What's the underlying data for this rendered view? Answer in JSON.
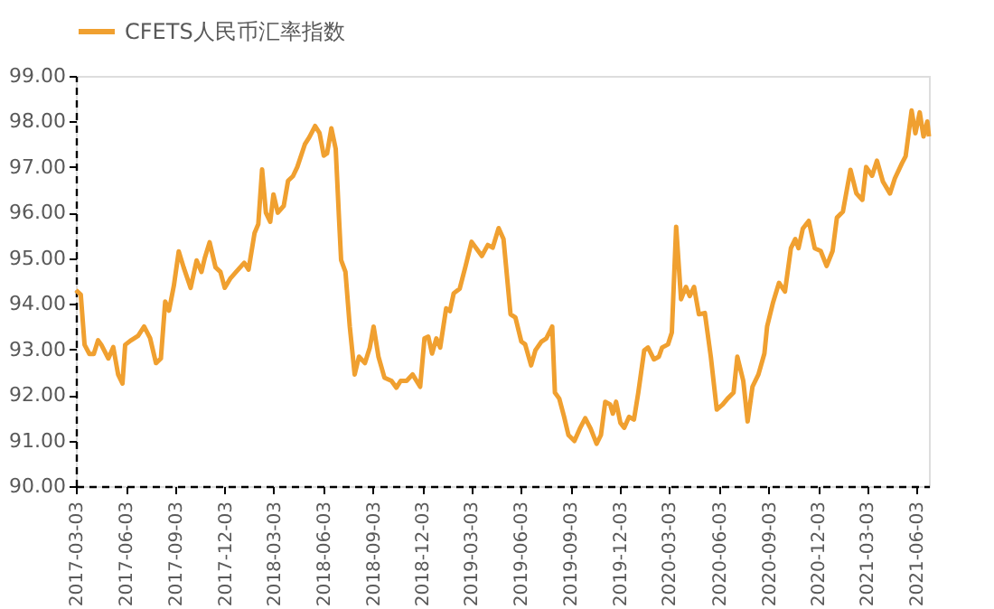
{
  "chart_data": {
    "type": "line",
    "x": [
      "2017-03-03",
      "2017-03-12",
      "2017-03-19",
      "2017-03-28",
      "2017-04-05",
      "2017-04-13",
      "2017-04-19",
      "2017-05-02",
      "2017-05-11",
      "2017-05-20",
      "2017-05-28",
      "2017-06-02",
      "2017-06-13",
      "2017-06-26",
      "2017-07-07",
      "2017-07-18",
      "2017-07-29",
      "2017-08-07",
      "2017-08-15",
      "2017-08-22",
      "2017-08-31",
      "2017-09-09",
      "2017-09-18",
      "2017-10-01",
      "2017-10-12",
      "2017-10-21",
      "2017-10-27",
      "2017-11-05",
      "2017-11-16",
      "2017-11-25",
      "2017-12-03",
      "2017-12-13",
      "2017-12-24",
      "2018-01-08",
      "2018-01-16",
      "2018-01-27",
      "2018-02-03",
      "2018-02-10",
      "2018-02-17",
      "2018-02-25",
      "2018-03-03",
      "2018-03-11",
      "2018-03-22",
      "2018-03-30",
      "2018-04-08",
      "2018-04-16",
      "2018-04-30",
      "2018-05-08",
      "2018-05-19",
      "2018-05-27",
      "2018-06-04",
      "2018-06-10",
      "2018-06-18",
      "2018-06-26",
      "2018-07-02",
      "2018-07-06",
      "2018-07-14",
      "2018-07-22",
      "2018-07-31",
      "2018-08-08",
      "2018-08-19",
      "2018-08-28",
      "2018-09-04",
      "2018-09-13",
      "2018-09-24",
      "2018-10-07",
      "2018-10-16",
      "2018-10-24",
      "2018-11-04",
      "2018-11-15",
      "2018-11-29",
      "2018-12-07",
      "2018-12-14",
      "2018-12-21",
      "2018-12-29",
      "2019-01-05",
      "2019-01-16",
      "2019-01-23",
      "2019-01-30",
      "2019-02-10",
      "2019-02-21",
      "2019-03-04",
      "2019-03-12",
      "2019-03-23",
      "2019-04-03",
      "2019-04-12",
      "2019-04-23",
      "2019-05-02",
      "2019-05-15",
      "2019-05-24",
      "2019-06-04",
      "2019-06-11",
      "2019-06-22",
      "2019-06-30",
      "2019-07-11",
      "2019-07-20",
      "2019-07-31",
      "2019-08-05",
      "2019-08-13",
      "2019-08-22",
      "2019-08-30",
      "2019-09-10",
      "2019-09-20",
      "2019-09-30",
      "2019-10-10",
      "2019-10-21",
      "2019-10-29",
      "2019-11-06",
      "2019-11-15",
      "2019-11-20",
      "2019-11-26",
      "2019-12-04",
      "2019-12-11",
      "2019-12-20",
      "2019-12-29",
      "2020-01-06",
      "2020-01-17",
      "2020-01-24",
      "2020-02-04",
      "2020-02-13",
      "2020-02-19",
      "2020-03-01",
      "2020-03-08",
      "2020-03-16",
      "2020-03-25",
      "2020-04-03",
      "2020-04-10",
      "2020-04-18",
      "2020-04-27",
      "2020-05-08",
      "2020-05-19",
      "2020-05-30",
      "2020-06-10",
      "2020-06-19",
      "2020-06-30",
      "2020-07-07",
      "2020-07-18",
      "2020-07-26",
      "2020-08-04",
      "2020-08-15",
      "2020-08-26",
      "2020-08-31",
      "2020-09-11",
      "2020-09-22",
      "2020-10-03",
      "2020-10-14",
      "2020-10-22",
      "2020-10-28",
      "2020-11-05",
      "2020-11-16",
      "2020-11-27",
      "2020-12-08",
      "2020-12-19",
      "2020-12-30",
      "2021-01-07",
      "2021-01-18",
      "2021-02-01",
      "2021-02-12",
      "2021-02-23",
      "2021-03-02",
      "2021-03-13",
      "2021-03-22",
      "2021-04-02",
      "2021-04-15",
      "2021-04-24",
      "2021-05-07",
      "2021-05-14",
      "2021-05-25",
      "2021-06-01",
      "2021-06-09",
      "2021-06-16",
      "2021-06-23",
      "2021-06-26"
    ],
    "series": [
      {
        "name": "CFETS人民币汇率指数",
        "color": "#f0a030",
        "values": [
          94.3,
          94.2,
          93.1,
          92.9,
          92.9,
          93.2,
          93.1,
          92.8,
          93.05,
          92.45,
          92.25,
          93.1,
          93.2,
          93.3,
          93.5,
          93.25,
          92.7,
          92.8,
          94.05,
          93.85,
          94.4,
          95.15,
          94.8,
          94.35,
          94.95,
          94.7,
          95.0,
          95.35,
          94.8,
          94.7,
          94.35,
          94.55,
          94.7,
          94.9,
          94.75,
          95.55,
          95.75,
          96.95,
          96.0,
          95.8,
          96.4,
          96.0,
          96.15,
          96.7,
          96.8,
          97.0,
          97.5,
          97.65,
          97.9,
          97.75,
          97.25,
          97.3,
          97.85,
          97.4,
          95.9,
          94.96,
          94.7,
          93.5,
          92.45,
          92.84,
          92.7,
          93.04,
          93.5,
          92.84,
          92.38,
          92.31,
          92.16,
          92.31,
          92.31,
          92.45,
          92.18,
          93.24,
          93.28,
          92.91,
          93.24,
          93.04,
          93.9,
          93.84,
          94.23,
          94.33,
          94.83,
          95.36,
          95.23,
          95.05,
          95.29,
          95.23,
          95.66,
          95.42,
          93.77,
          93.7,
          93.17,
          93.11,
          92.65,
          92.98,
          93.17,
          93.24,
          93.5,
          92.05,
          91.92,
          91.52,
          91.12,
          90.99,
          91.26,
          91.49,
          91.26,
          90.93,
          91.12,
          91.85,
          91.79,
          91.59,
          91.85,
          91.39,
          91.28,
          91.52,
          91.46,
          92.05,
          92.98,
          93.04,
          92.78,
          92.84,
          93.04,
          93.11,
          93.37,
          95.69,
          94.1,
          94.37,
          94.17,
          94.37,
          93.77,
          93.8,
          92.84,
          91.68,
          91.79,
          91.92,
          92.05,
          92.84,
          92.31,
          91.42,
          92.18,
          92.45,
          92.91,
          93.5,
          94.03,
          94.46,
          94.27,
          95.22,
          95.42,
          95.22,
          95.65,
          95.82,
          95.22,
          95.16,
          94.83,
          95.16,
          95.89,
          96.02,
          96.94,
          96.42,
          96.28,
          97.0,
          96.81,
          97.14,
          96.68,
          96.42,
          96.75,
          97.08,
          97.24,
          98.24,
          97.74,
          98.2,
          97.67,
          98.0,
          97.67
        ]
      }
    ],
    "xlim": [
      "2017-03-03",
      "2021-06-26"
    ],
    "xticks": [
      "2017-03-03",
      "2017-06-03",
      "2017-09-03",
      "2017-12-03",
      "2018-03-03",
      "2018-06-03",
      "2018-09-03",
      "2018-12-03",
      "2019-03-03",
      "2019-06-03",
      "2019-09-03",
      "2019-12-03",
      "2020-03-03",
      "2020-06-03",
      "2020-09-03",
      "2020-12-03",
      "2021-03-03",
      "2021-06-03"
    ],
    "ylim": [
      90,
      99
    ],
    "yticks": [
      {
        "value": 90,
        "label": "90.00"
      },
      {
        "value": 91,
        "label": "91.00"
      },
      {
        "value": 92,
        "label": "92.00"
      },
      {
        "value": 93,
        "label": "93.00"
      },
      {
        "value": 94,
        "label": "94.00"
      },
      {
        "value": 95,
        "label": "95.00"
      },
      {
        "value": 96,
        "label": "96.00"
      },
      {
        "value": 97,
        "label": "97.00"
      },
      {
        "value": 98,
        "label": "98.00"
      },
      {
        "value": 99,
        "label": "99.00"
      }
    ],
    "grid": false,
    "legend": "top",
    "marker": "none",
    "line_style": "solid"
  }
}
